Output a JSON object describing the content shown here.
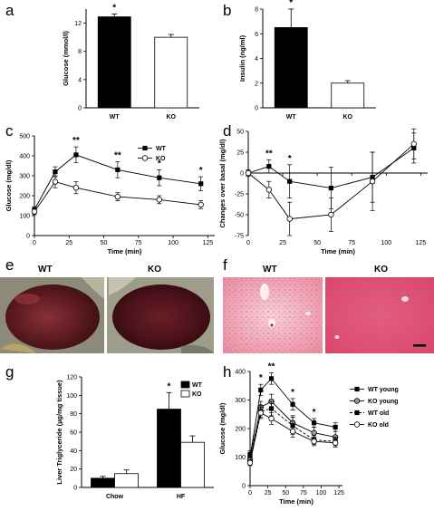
{
  "colors": {
    "black": "#000000",
    "white": "#ffffff",
    "histo_light": "#f4c6d4",
    "histo_dark": "#e0607e",
    "liver_dark": "#4a1418",
    "liver_mid": "#7a2a30"
  },
  "chart_data": [
    {
      "panel": "a",
      "type": "bar",
      "categories": [
        "WT",
        "KO"
      ],
      "values": [
        12.9,
        10.0
      ],
      "errors": [
        0.4,
        0.4
      ],
      "fills": [
        "black",
        "white"
      ],
      "significance": [
        "*",
        ""
      ],
      "ylabel": "Glucose (mmol/l)",
      "ylim": [
        0,
        14
      ],
      "yticks": [
        0,
        4,
        8,
        12
      ]
    },
    {
      "panel": "b",
      "type": "bar",
      "categories": [
        "WT",
        "KO"
      ],
      "values": [
        6.5,
        2.0
      ],
      "errors": [
        1.5,
        0.2
      ],
      "fills": [
        "black",
        "white"
      ],
      "significance": [
        "*",
        ""
      ],
      "ylabel": "Insulin (ng/ml)",
      "ylim": [
        0,
        8
      ],
      "yticks": [
        0,
        2,
        4,
        6,
        8
      ]
    },
    {
      "panel": "c",
      "type": "line",
      "x": [
        0,
        15,
        30,
        60,
        90,
        120
      ],
      "series": [
        {
          "name": "WT",
          "marker": "square-filled",
          "values": [
            130,
            320,
            405,
            330,
            290,
            260
          ],
          "errors": [
            15,
            25,
            40,
            40,
            40,
            35
          ]
        },
        {
          "name": "KO",
          "marker": "circle-open",
          "values": [
            120,
            270,
            240,
            195,
            180,
            155
          ],
          "errors": [
            15,
            30,
            30,
            20,
            20,
            20
          ]
        }
      ],
      "significance": [
        {
          "x": 30,
          "text": "**"
        },
        {
          "x": 60,
          "text": "**"
        },
        {
          "x": 90,
          "text": "*"
        },
        {
          "x": 120,
          "text": "*"
        }
      ],
      "xlabel": "Time (min)",
      "ylabel": "Glucose (mg/dl)",
      "xlim": [
        0,
        130
      ],
      "ylim": [
        0,
        500
      ],
      "xticks": [
        0,
        25,
        50,
        75,
        100,
        125
      ],
      "yticks": [
        0,
        100,
        200,
        300,
        400,
        500
      ],
      "legend": "top-right"
    },
    {
      "panel": "d",
      "type": "line",
      "x": [
        0,
        15,
        30,
        60,
        90,
        120
      ],
      "series": [
        {
          "name": "WT",
          "marker": "square-filled",
          "values": [
            0,
            8,
            -10,
            -18,
            -5,
            30
          ],
          "errors": [
            4,
            8,
            20,
            25,
            30,
            18
          ]
        },
        {
          "name": "KO",
          "marker": "circle-open",
          "values": [
            0,
            -20,
            -55,
            -50,
            -10,
            35
          ],
          "errors": [
            4,
            10,
            20,
            20,
            35,
            18
          ]
        }
      ],
      "significance": [
        {
          "x": 15,
          "text": "**"
        },
        {
          "x": 30,
          "text": "*"
        }
      ],
      "xlabel": "Time (min)",
      "ylabel": "Changes over basal (mg/dl)",
      "xlim": [
        0,
        130
      ],
      "ylim": [
        -75,
        50
      ],
      "xticks": [
        0,
        25,
        50,
        75,
        100,
        125
      ],
      "yticks": [
        -75,
        -50,
        -25,
        0,
        25,
        50
      ]
    },
    {
      "panel": "g",
      "type": "bar",
      "categories": [
        "Chow",
        "HF"
      ],
      "series": [
        {
          "name": "WT",
          "fill": "black",
          "values": [
            10,
            85
          ],
          "errors": [
            2,
            18
          ]
        },
        {
          "name": "KO",
          "fill": "white",
          "values": [
            15,
            49
          ],
          "errors": [
            4,
            7
          ]
        }
      ],
      "significance": [
        {
          "category": "HF",
          "series": "WT",
          "text": "*"
        }
      ],
      "ylabel": "Liver Triglyceride (µg/mg tissue)",
      "ylim": [
        0,
        120
      ],
      "yticks": [
        0,
        20,
        40,
        60,
        80,
        100,
        120
      ],
      "legend": "top-right"
    },
    {
      "panel": "h",
      "type": "line",
      "x": [
        0,
        15,
        30,
        60,
        90,
        120
      ],
      "series": [
        {
          "name": "WT young",
          "marker": "square-filled",
          "dash": false,
          "values": [
            100,
            335,
            375,
            285,
            220,
            205
          ],
          "errors": [
            10,
            20,
            20,
            20,
            15,
            15
          ]
        },
        {
          "name": "KO young",
          "marker": "circle-gray",
          "dash": false,
          "values": [
            90,
            275,
            295,
            220,
            185,
            170
          ],
          "errors": [
            10,
            20,
            25,
            25,
            20,
            20
          ]
        },
        {
          "name": "WT old",
          "marker": "square-filled",
          "dash": true,
          "values": [
            110,
            260,
            270,
            210,
            160,
            155
          ],
          "errors": [
            12,
            20,
            25,
            30,
            15,
            15
          ]
        },
        {
          "name": "KO old",
          "marker": "circle-open",
          "dash": false,
          "values": [
            80,
            255,
            235,
            190,
            155,
            150
          ],
          "errors": [
            10,
            20,
            20,
            20,
            15,
            15
          ]
        }
      ],
      "significance": [
        {
          "x": 15,
          "text": "*"
        },
        {
          "x": 30,
          "text": "**"
        },
        {
          "x": 60,
          "text": "*"
        },
        {
          "x": 90,
          "text": "*"
        }
      ],
      "xlabel": "Time (min)",
      "ylabel": "Glucose (mg/dl)",
      "xlim": [
        0,
        130
      ],
      "ylim": [
        0,
        400
      ],
      "xticks": [
        0,
        25,
        50,
        75,
        100,
        125
      ],
      "yticks": [
        0,
        100,
        200,
        300,
        400
      ],
      "legend": "right"
    }
  ],
  "panel_labels": [
    "a",
    "b",
    "c",
    "d",
    "e",
    "f",
    "g",
    "h"
  ],
  "photos": {
    "e": {
      "labels": [
        "WT",
        "KO"
      ]
    },
    "f": {
      "labels": [
        "WT",
        "KO"
      ]
    }
  }
}
